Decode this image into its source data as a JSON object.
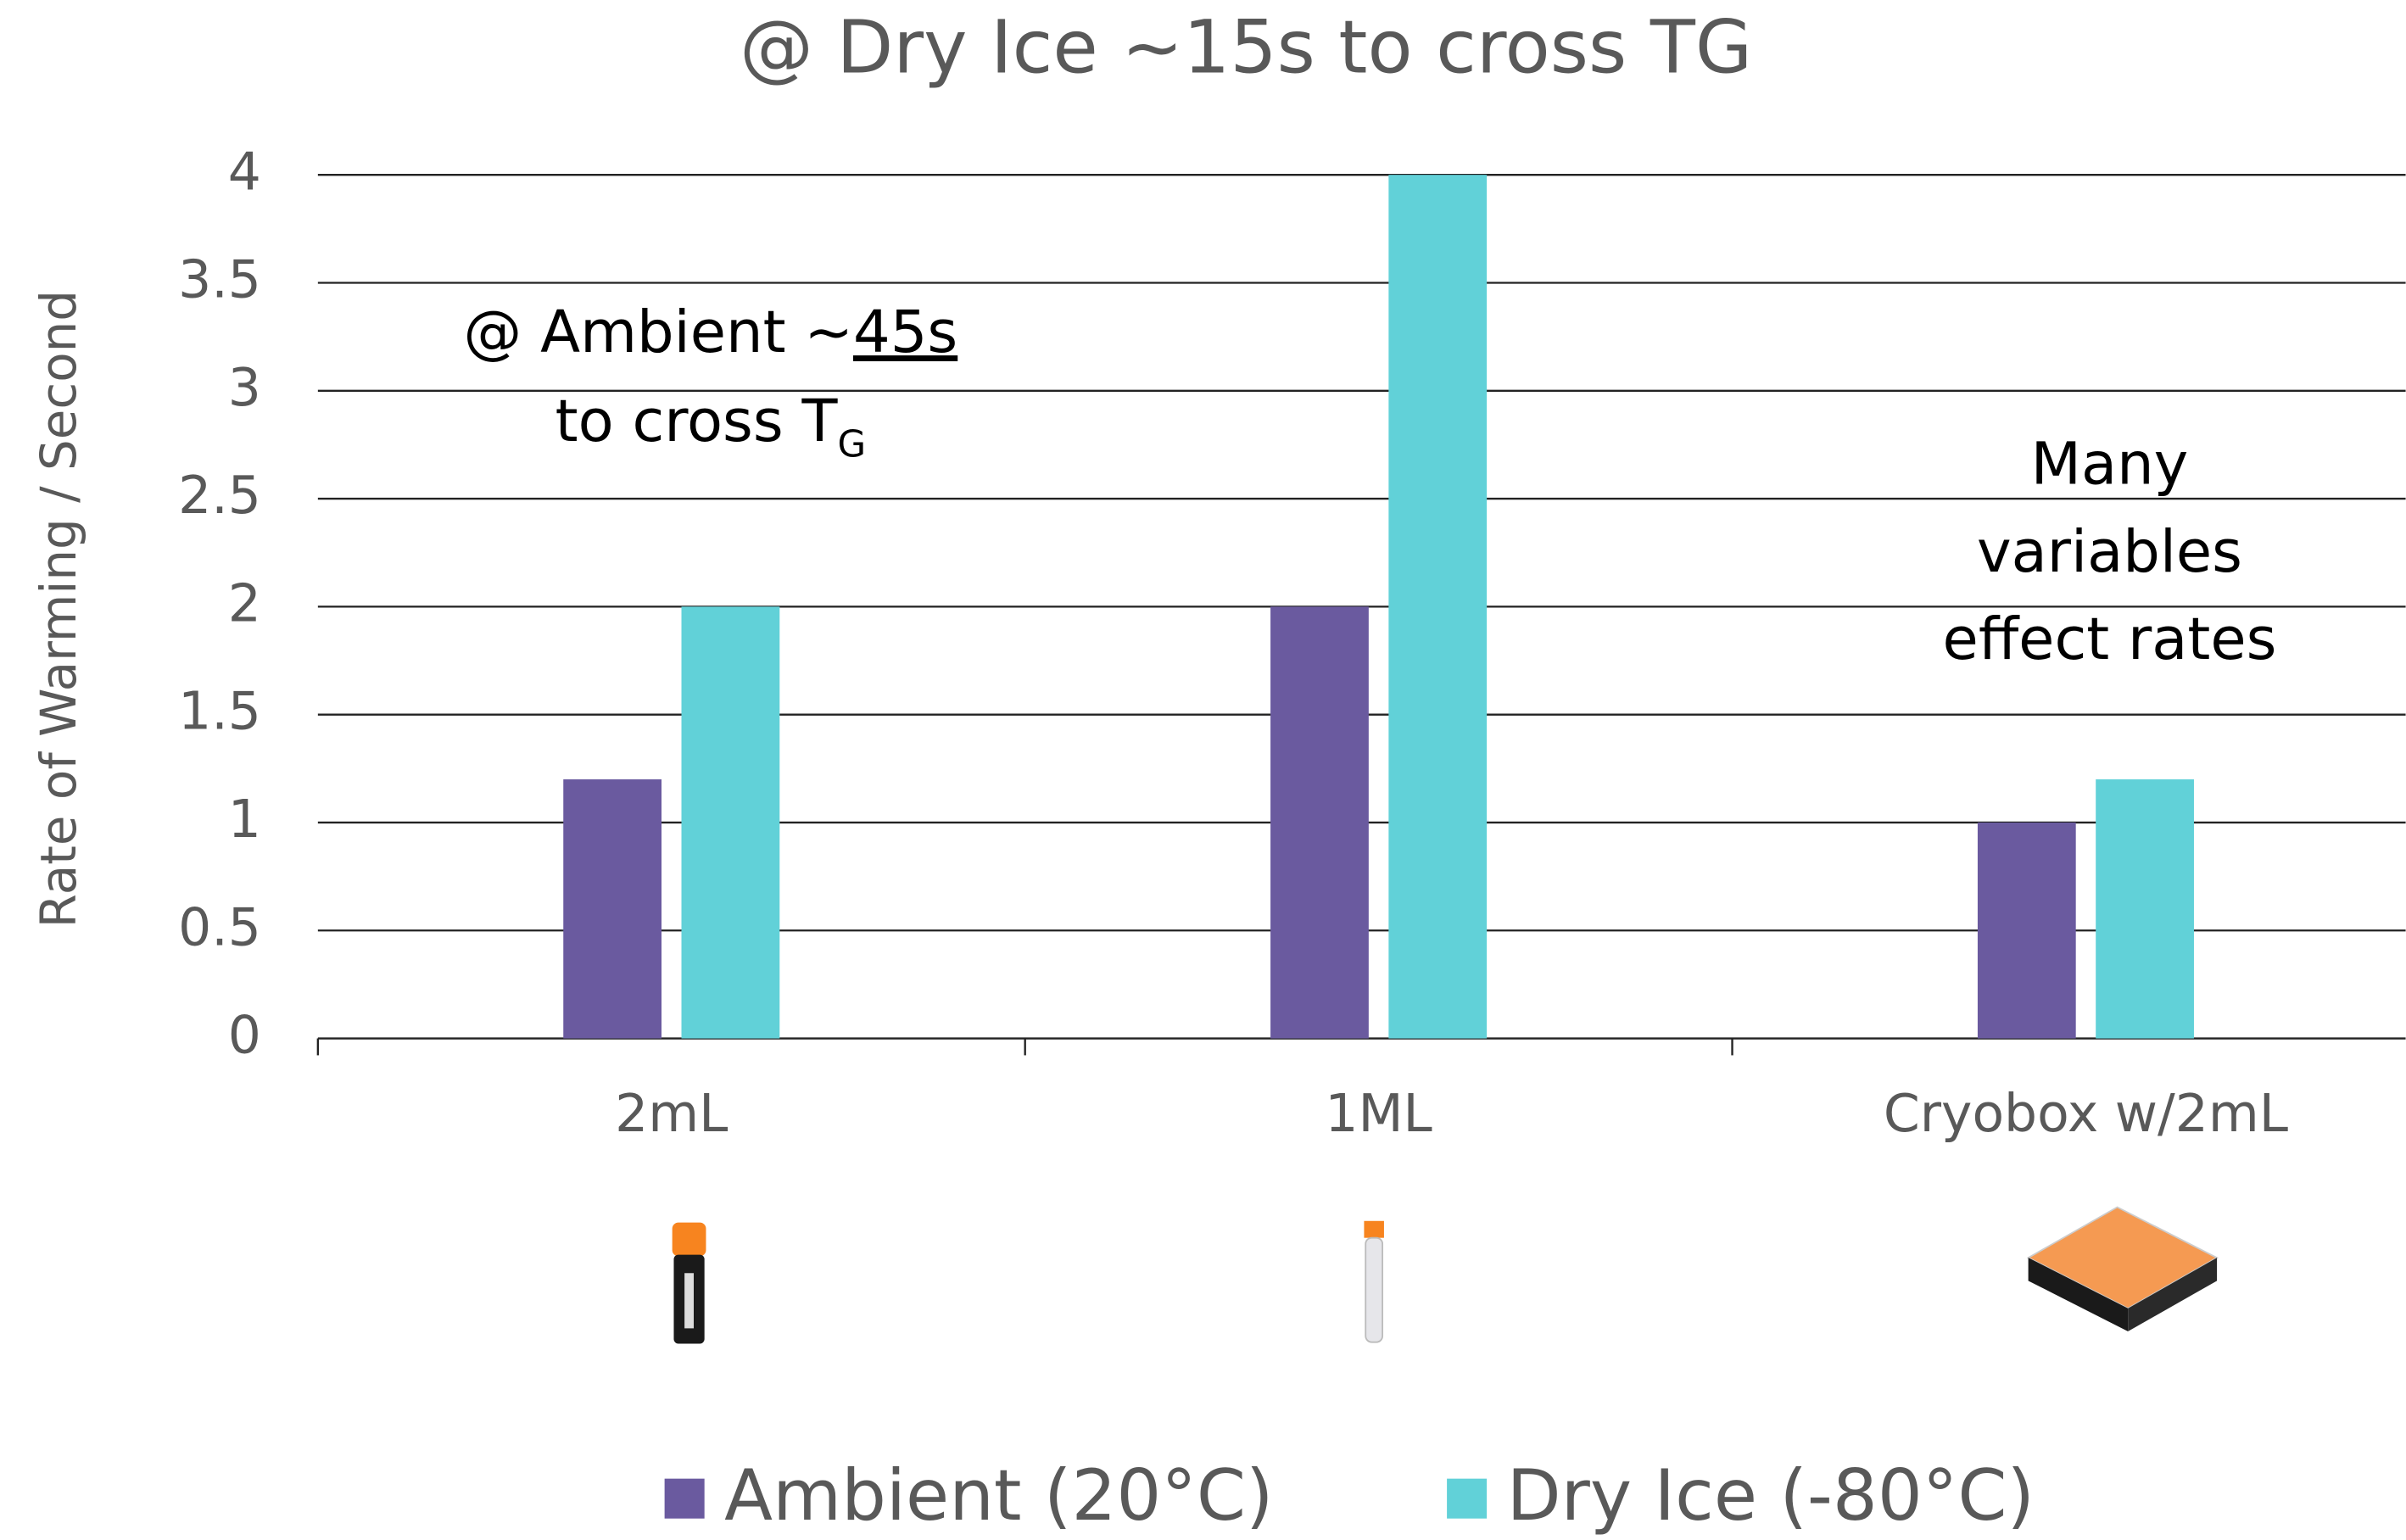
{
  "chart_data": {
    "type": "bar",
    "title": "@ Dry Ice ~15s to cross TG",
    "y_label": "Rate of Warming / Second",
    "categories": [
      "2mL",
      "1ML",
      "Cryobox w/2mL"
    ],
    "series": [
      {
        "name": "Ambient (20°C)",
        "color": "#6a5a9f",
        "values": [
          1.2,
          2,
          1
        ]
      },
      {
        "name": "Dry Ice (-80°C)",
        "color": "#61d1d8",
        "values": [
          2,
          4,
          1.2
        ]
      }
    ],
    "ylim": [
      0,
      4
    ],
    "yticks": [
      0,
      0.5,
      1,
      1.5,
      2,
      2.5,
      3,
      3.5,
      4
    ],
    "grid": true,
    "legend": "bottom",
    "annotations": [
      {
        "line1": [
          "@ Ambient ~",
          "45s"
        ],
        "line2": [
          "to cross T",
          "G"
        ]
      },
      {
        "lines": [
          "Many",
          "variables",
          "effect rates"
        ]
      }
    ]
  }
}
